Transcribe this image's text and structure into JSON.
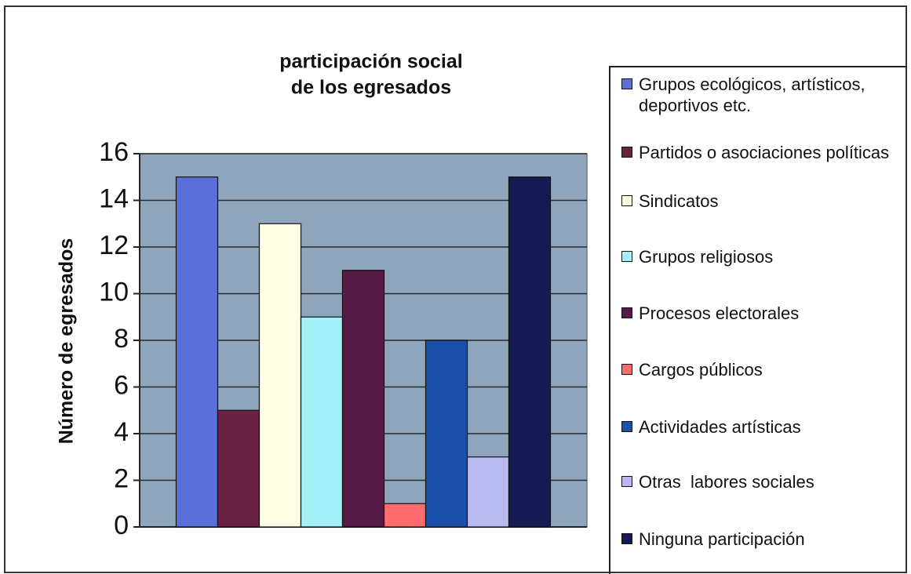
{
  "chart_data": {
    "type": "bar",
    "title": [
      "participación social",
      "de los egresados"
    ],
    "y_label": "Número de egresados",
    "series": [
      {
        "name": "Grupos ecológicos, artísticos, deportivos etc.",
        "color": "#5b6fd9",
        "values": [
          15
        ]
      },
      {
        "name": "Partidos o asociaciones políticas",
        "color": "#6a2142",
        "values": [
          5
        ]
      },
      {
        "name": "Sindicatos",
        "color": "#fffde3",
        "values": [
          13
        ]
      },
      {
        "name": "Grupos religiosos",
        "color": "#a3f0f8",
        "values": [
          9
        ]
      },
      {
        "name": "Procesos electorales",
        "color": "#561a47",
        "values": [
          11
        ]
      },
      {
        "name": "Cargos públicos",
        "color": "#ff6b6f",
        "values": [
          1
        ]
      },
      {
        "name": "Actividades artísticas",
        "color": "#1c4fa9",
        "values": [
          8
        ]
      },
      {
        "name": "Otras  labores sociales",
        "color": "#b9b9f2",
        "values": [
          3
        ]
      },
      {
        "name": "Ninguna participación",
        "color": "#141a52",
        "values": [
          15
        ]
      }
    ],
    "ylim": [
      0,
      16
    ],
    "yticks": [
      0,
      2,
      4,
      6,
      8,
      10,
      12,
      14,
      16
    ],
    "grid": true
  }
}
